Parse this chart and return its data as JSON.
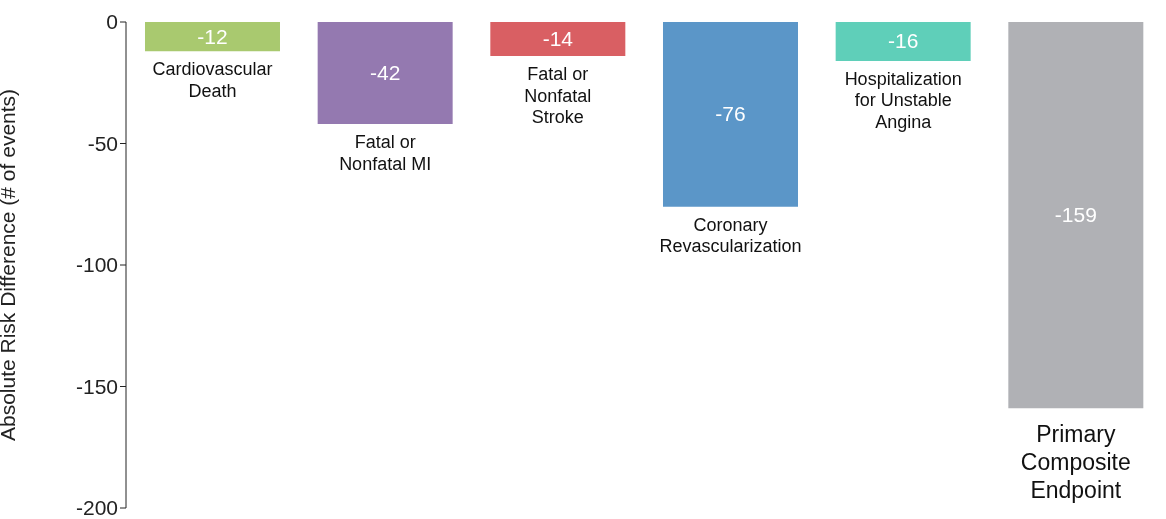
{
  "chart_data": {
    "type": "bar",
    "ylabel": "Absolute Risk Difference (# of events)",
    "categories": [
      "Cardiovascular\nDeath",
      "Fatal or\nNonfatal MI",
      "Fatal or\nNonfatal\nStroke",
      "Coronary\nRevascularization",
      "Hospitalization\nfor Unstable\nAngina",
      "Primary\nComposite\nEndpoint"
    ],
    "values": [
      -12,
      -42,
      -14,
      -76,
      -16,
      -159
    ],
    "colors": [
      "#a9c96f",
      "#9479b0",
      "#d95f63",
      "#5b96c8",
      "#5fcfb9",
      "#b0b1b5"
    ],
    "ylim": [
      -200,
      0
    ],
    "yticks": [
      0,
      -50,
      -100,
      -150,
      -200
    ],
    "data_labels": true
  }
}
